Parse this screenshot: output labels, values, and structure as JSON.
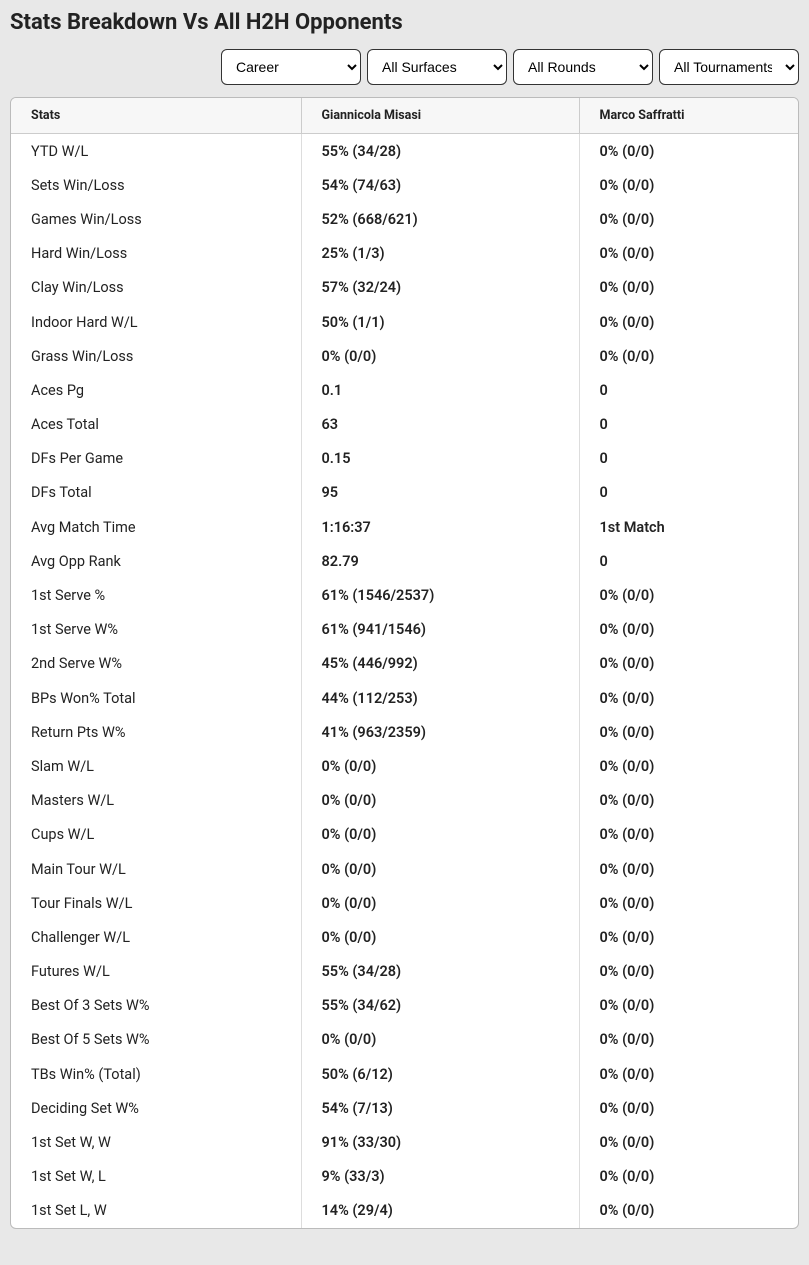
{
  "title": "Stats Breakdown Vs All H2H Opponents",
  "filters": {
    "career": "Career",
    "surfaces": "All Surfaces",
    "rounds": "All Rounds",
    "tournaments": "All Tournaments"
  },
  "table": {
    "headers": {
      "stats": "Stats",
      "player1": "Giannicola Misasi",
      "player2": "Marco Saffratti"
    },
    "rows": [
      {
        "label": "YTD W/L",
        "p1": "55% (34/28)",
        "p2": "0% (0/0)"
      },
      {
        "label": "Sets Win/Loss",
        "p1": "54% (74/63)",
        "p2": "0% (0/0)"
      },
      {
        "label": "Games Win/Loss",
        "p1": "52% (668/621)",
        "p2": "0% (0/0)"
      },
      {
        "label": "Hard Win/Loss",
        "p1": "25% (1/3)",
        "p2": "0% (0/0)"
      },
      {
        "label": "Clay Win/Loss",
        "p1": "57% (32/24)",
        "p2": "0% (0/0)"
      },
      {
        "label": "Indoor Hard W/L",
        "p1": "50% (1/1)",
        "p2": "0% (0/0)"
      },
      {
        "label": "Grass Win/Loss",
        "p1": "0% (0/0)",
        "p2": "0% (0/0)"
      },
      {
        "label": "Aces Pg",
        "p1": "0.1",
        "p2": "0"
      },
      {
        "label": "Aces Total",
        "p1": "63",
        "p2": "0"
      },
      {
        "label": "DFs Per Game",
        "p1": "0.15",
        "p2": "0"
      },
      {
        "label": "DFs Total",
        "p1": "95",
        "p2": "0"
      },
      {
        "label": "Avg Match Time",
        "p1": "1:16:37",
        "p2": "1st Match"
      },
      {
        "label": "Avg Opp Rank",
        "p1": "82.79",
        "p2": "0"
      },
      {
        "label": "1st Serve %",
        "p1": "61% (1546/2537)",
        "p2": "0% (0/0)"
      },
      {
        "label": "1st Serve W%",
        "p1": "61% (941/1546)",
        "p2": "0% (0/0)"
      },
      {
        "label": "2nd Serve W%",
        "p1": "45% (446/992)",
        "p2": "0% (0/0)"
      },
      {
        "label": "BPs Won% Total",
        "p1": "44% (112/253)",
        "p2": "0% (0/0)"
      },
      {
        "label": "Return Pts W%",
        "p1": "41% (963/2359)",
        "p2": "0% (0/0)"
      },
      {
        "label": "Slam W/L",
        "p1": "0% (0/0)",
        "p2": "0% (0/0)"
      },
      {
        "label": "Masters W/L",
        "p1": "0% (0/0)",
        "p2": "0% (0/0)"
      },
      {
        "label": "Cups W/L",
        "p1": "0% (0/0)",
        "p2": "0% (0/0)"
      },
      {
        "label": "Main Tour W/L",
        "p1": "0% (0/0)",
        "p2": "0% (0/0)"
      },
      {
        "label": "Tour Finals W/L",
        "p1": "0% (0/0)",
        "p2": "0% (0/0)"
      },
      {
        "label": "Challenger W/L",
        "p1": "0% (0/0)",
        "p2": "0% (0/0)"
      },
      {
        "label": "Futures W/L",
        "p1": "55% (34/28)",
        "p2": "0% (0/0)"
      },
      {
        "label": "Best Of 3 Sets W%",
        "p1": "55% (34/62)",
        "p2": "0% (0/0)"
      },
      {
        "label": "Best Of 5 Sets W%",
        "p1": "0% (0/0)",
        "p2": "0% (0/0)"
      },
      {
        "label": "TBs Win% (Total)",
        "p1": "50% (6/12)",
        "p2": "0% (0/0)"
      },
      {
        "label": "Deciding Set W%",
        "p1": "54% (7/13)",
        "p2": "0% (0/0)"
      },
      {
        "label": "1st Set W, W",
        "p1": "91% (33/30)",
        "p2": "0% (0/0)"
      },
      {
        "label": "1st Set W, L",
        "p1": "9% (33/3)",
        "p2": "0% (0/0)"
      },
      {
        "label": "1st Set L, W",
        "p1": "14% (29/4)",
        "p2": "0% (0/0)"
      }
    ]
  }
}
